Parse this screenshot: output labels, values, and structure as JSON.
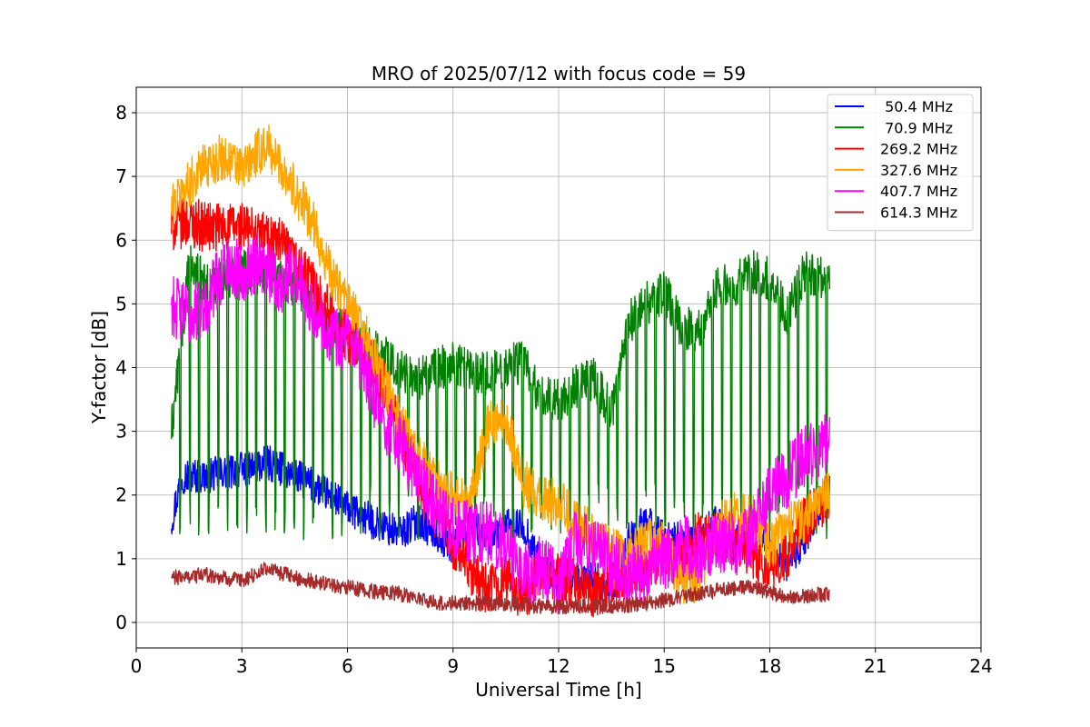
{
  "chart_data": {
    "type": "line",
    "title": "MRO of 2025/07/12 with focus code = 59",
    "xlabel": "Universal Time [h]",
    "ylabel": "Y-factor [dB]",
    "xlim": [
      0,
      24
    ],
    "ylim": [
      -0.4,
      8.4
    ],
    "xticks": [
      0,
      3,
      6,
      9,
      12,
      15,
      18,
      21,
      24
    ],
    "yticks": [
      0,
      1,
      2,
      3,
      4,
      5,
      6,
      7,
      8
    ],
    "grid": true,
    "legend_position": "top-right",
    "series": [
      {
        "name": " 50.4 MHz",
        "color": "#0000ff",
        "noise": 0.28,
        "x": [
          1.0,
          1.3,
          2.0,
          3.0,
          3.8,
          4.5,
          5.2,
          6.0,
          7.0,
          7.5,
          8.0,
          8.5,
          9.0,
          9.5,
          10.0,
          10.5,
          11.0,
          11.5,
          12.0,
          13.0,
          13.5,
          14.0,
          14.5,
          15.0,
          16.0,
          16.5,
          17.0,
          17.5,
          18.0,
          18.5,
          19.0,
          19.7
        ],
        "y": [
          1.6,
          2.3,
          2.3,
          2.4,
          2.5,
          2.3,
          2.1,
          1.8,
          1.5,
          1.4,
          1.6,
          1.4,
          1.2,
          1.6,
          1.3,
          1.5,
          1.5,
          0.9,
          0.6,
          0.7,
          0.5,
          1.3,
          1.6,
          1.3,
          1.3,
          1.6,
          1.2,
          1.6,
          1.2,
          0.9,
          1.3,
          2.2
        ]
      },
      {
        "name": " 70.9 MHz",
        "color": "#008000",
        "noise": 0.35,
        "dips": true,
        "x": [
          1.0,
          1.5,
          2.0,
          3.0,
          4.0,
          5.0,
          6.0,
          7.0,
          8.0,
          9.0,
          10.0,
          10.5,
          11.0,
          11.5,
          12.0,
          12.5,
          13.0,
          13.5,
          14.0,
          14.5,
          15.0,
          15.5,
          16.0,
          16.5,
          17.0,
          17.5,
          18.0,
          18.5,
          19.0,
          19.7
        ],
        "y": [
          3.0,
          5.6,
          5.3,
          5.5,
          5.5,
          5.0,
          4.5,
          4.2,
          3.8,
          4.1,
          3.9,
          4.0,
          4.1,
          3.5,
          3.5,
          3.7,
          3.8,
          3.3,
          4.7,
          5.0,
          5.2,
          4.6,
          4.6,
          5.3,
          5.3,
          5.5,
          5.4,
          4.8,
          5.5,
          5.4
        ]
      },
      {
        "name": "269.2 MHz",
        "color": "#ff0000",
        "noise": 0.4,
        "x": [
          1.0,
          1.5,
          2.0,
          3.0,
          4.0,
          5.0,
          5.8,
          6.5,
          7.0,
          8.0,
          9.0,
          9.5,
          10.0,
          10.5,
          11.0,
          11.5,
          12.0,
          12.5,
          13.0,
          13.5,
          14.0,
          14.5,
          15.0,
          15.5,
          16.0,
          17.0,
          17.5,
          18.0,
          18.5,
          19.0,
          19.7
        ],
        "y": [
          6.2,
          6.3,
          6.2,
          6.2,
          6.0,
          5.3,
          4.6,
          4.2,
          3.8,
          2.2,
          1.2,
          0.8,
          0.5,
          0.7,
          0.4,
          0.8,
          0.7,
          0.6,
          0.4,
          0.7,
          0.8,
          0.9,
          1.0,
          1.0,
          1.4,
          1.3,
          1.1,
          0.9,
          1.1,
          1.6,
          2.0
        ]
      },
      {
        "name": "327.6 MHz",
        "color": "#ffa500",
        "noise": 0.38,
        "x": [
          1.0,
          1.5,
          2.0,
          2.5,
          3.0,
          3.7,
          4.2,
          5.0,
          5.5,
          6.0,
          6.5,
          7.0,
          7.5,
          8.0,
          8.5,
          9.0,
          9.5,
          10.0,
          10.5,
          11.0,
          11.5,
          12.0,
          12.5,
          13.0,
          13.5,
          14.0,
          14.5,
          15.0,
          15.5,
          16.0,
          16.5,
          17.0,
          17.5,
          18.0,
          18.5,
          19.0,
          19.7
        ],
        "y": [
          6.5,
          6.9,
          7.2,
          7.3,
          7.1,
          7.5,
          7.1,
          6.3,
          5.5,
          5.0,
          4.5,
          3.8,
          3.2,
          2.6,
          2.2,
          2.0,
          1.9,
          3.1,
          3.2,
          2.2,
          1.9,
          1.9,
          1.6,
          1.4,
          1.1,
          1.0,
          1.3,
          1.2,
          0.6,
          0.7,
          1.5,
          1.7,
          1.7,
          1.2,
          1.5,
          1.6,
          2.0
        ]
      },
      {
        "name": "407.7 MHz",
        "color": "#ff00ff",
        "noise": 0.5,
        "x": [
          1.0,
          1.5,
          2.0,
          2.5,
          3.0,
          3.5,
          4.0,
          4.5,
          5.0,
          5.5,
          6.0,
          6.5,
          7.0,
          7.5,
          8.0,
          8.5,
          9.0,
          9.5,
          10.0,
          10.5,
          11.0,
          11.5,
          12.0,
          12.5,
          13.0,
          13.5,
          14.0,
          14.5,
          15.0,
          15.5,
          16.0,
          16.5,
          17.0,
          17.5,
          18.0,
          18.5,
          19.0,
          19.7
        ],
        "y": [
          5.0,
          4.8,
          5.0,
          5.6,
          5.5,
          5.7,
          5.3,
          5.5,
          5.0,
          4.6,
          4.4,
          3.9,
          3.2,
          2.8,
          2.3,
          1.8,
          1.5,
          1.4,
          1.4,
          1.2,
          0.7,
          0.9,
          0.6,
          1.3,
          1.2,
          0.9,
          0.7,
          0.8,
          1.0,
          1.2,
          1.1,
          1.3,
          1.2,
          1.4,
          2.0,
          2.3,
          2.6,
          2.8
        ]
      },
      {
        "name": "614.3 MHz",
        "color": "#a52a2a",
        "noise": 0.12,
        "x": [
          1.0,
          2.0,
          3.0,
          3.7,
          4.5,
          5.5,
          6.5,
          7.5,
          8.5,
          9.5,
          10.5,
          11.5,
          12.5,
          13.5,
          14.5,
          15.5,
          16.5,
          17.5,
          18.5,
          19.7
        ],
        "y": [
          0.7,
          0.75,
          0.65,
          0.85,
          0.7,
          0.6,
          0.5,
          0.45,
          0.3,
          0.3,
          0.3,
          0.25,
          0.25,
          0.25,
          0.3,
          0.4,
          0.5,
          0.55,
          0.4,
          0.45
        ]
      }
    ]
  }
}
